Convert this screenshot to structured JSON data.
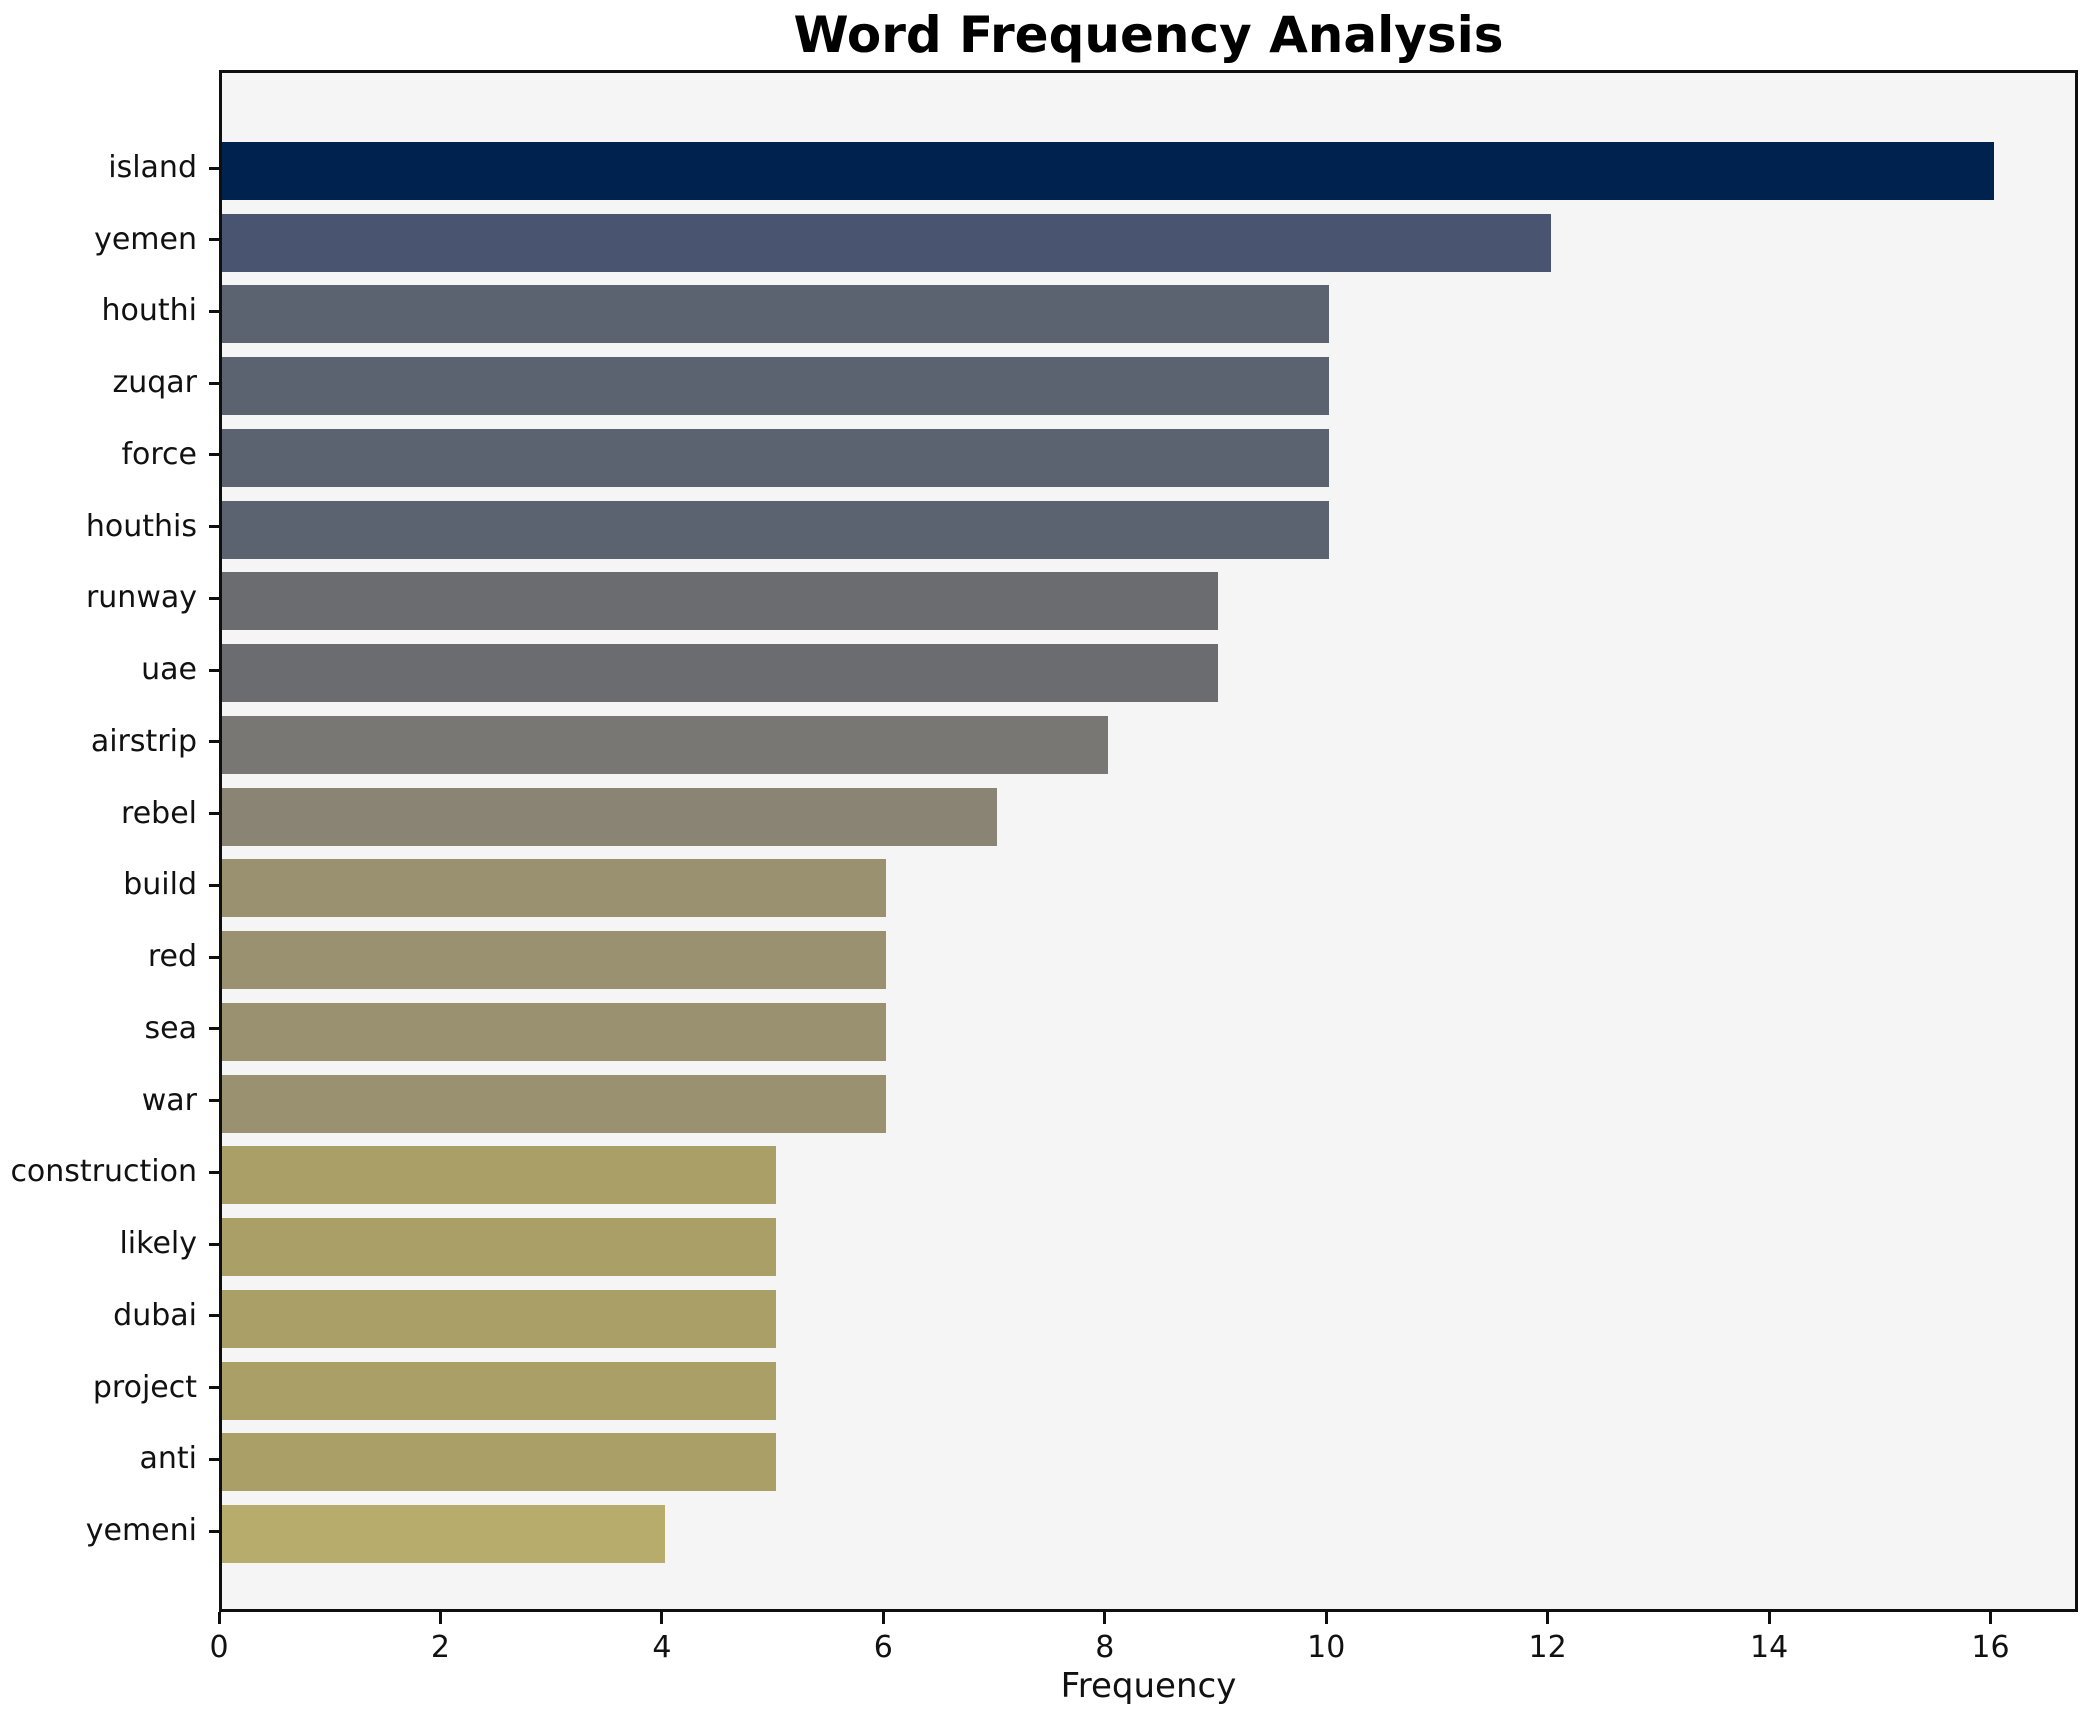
{
  "chart_data": {
    "type": "bar",
    "orientation": "horizontal",
    "title": "Word Frequency Analysis",
    "xlabel": "Frequency",
    "ylabel": "",
    "xlim": [
      0,
      16.79
    ],
    "xticks": [
      0,
      2,
      4,
      6,
      8,
      10,
      12,
      14,
      16
    ],
    "grid": false,
    "legend": "none",
    "colormap": "cividis",
    "background_plot": "#f5f5f6",
    "background_figure": "#ffffff",
    "spine_color": "#0f0f0f",
    "bars": [
      {
        "label": "island",
        "value": 16,
        "color": "#00224e"
      },
      {
        "label": "yemen",
        "value": 12,
        "color": "#495470"
      },
      {
        "label": "houthi",
        "value": 10,
        "color": "#5c6370"
      },
      {
        "label": "zuqar",
        "value": 10,
        "color": "#5c6370"
      },
      {
        "label": "force",
        "value": 10,
        "color": "#5c6370"
      },
      {
        "label": "houthis",
        "value": 10,
        "color": "#5c6370"
      },
      {
        "label": "runway",
        "value": 9,
        "color": "#6a6c70"
      },
      {
        "label": "uae",
        "value": 9,
        "color": "#6a6c70"
      },
      {
        "label": "airstrip",
        "value": 8,
        "color": "#797774"
      },
      {
        "label": "rebel",
        "value": 7,
        "color": "#8a8474"
      },
      {
        "label": "build",
        "value": 6,
        "color": "#9a9171"
      },
      {
        "label": "red",
        "value": 6,
        "color": "#9a9171"
      },
      {
        "label": "sea",
        "value": 6,
        "color": "#9a9171"
      },
      {
        "label": "war",
        "value": 6,
        "color": "#9a9171"
      },
      {
        "label": "construction",
        "value": 5,
        "color": "#aaa067"
      },
      {
        "label": "likely",
        "value": 5,
        "color": "#aaa067"
      },
      {
        "label": "dubai",
        "value": 5,
        "color": "#aaa067"
      },
      {
        "label": "project",
        "value": 5,
        "color": "#aaa067"
      },
      {
        "label": "anti",
        "value": 5,
        "color": "#aaa067"
      },
      {
        "label": "yemeni",
        "value": 4,
        "color": "#b8ac6c"
      }
    ]
  }
}
